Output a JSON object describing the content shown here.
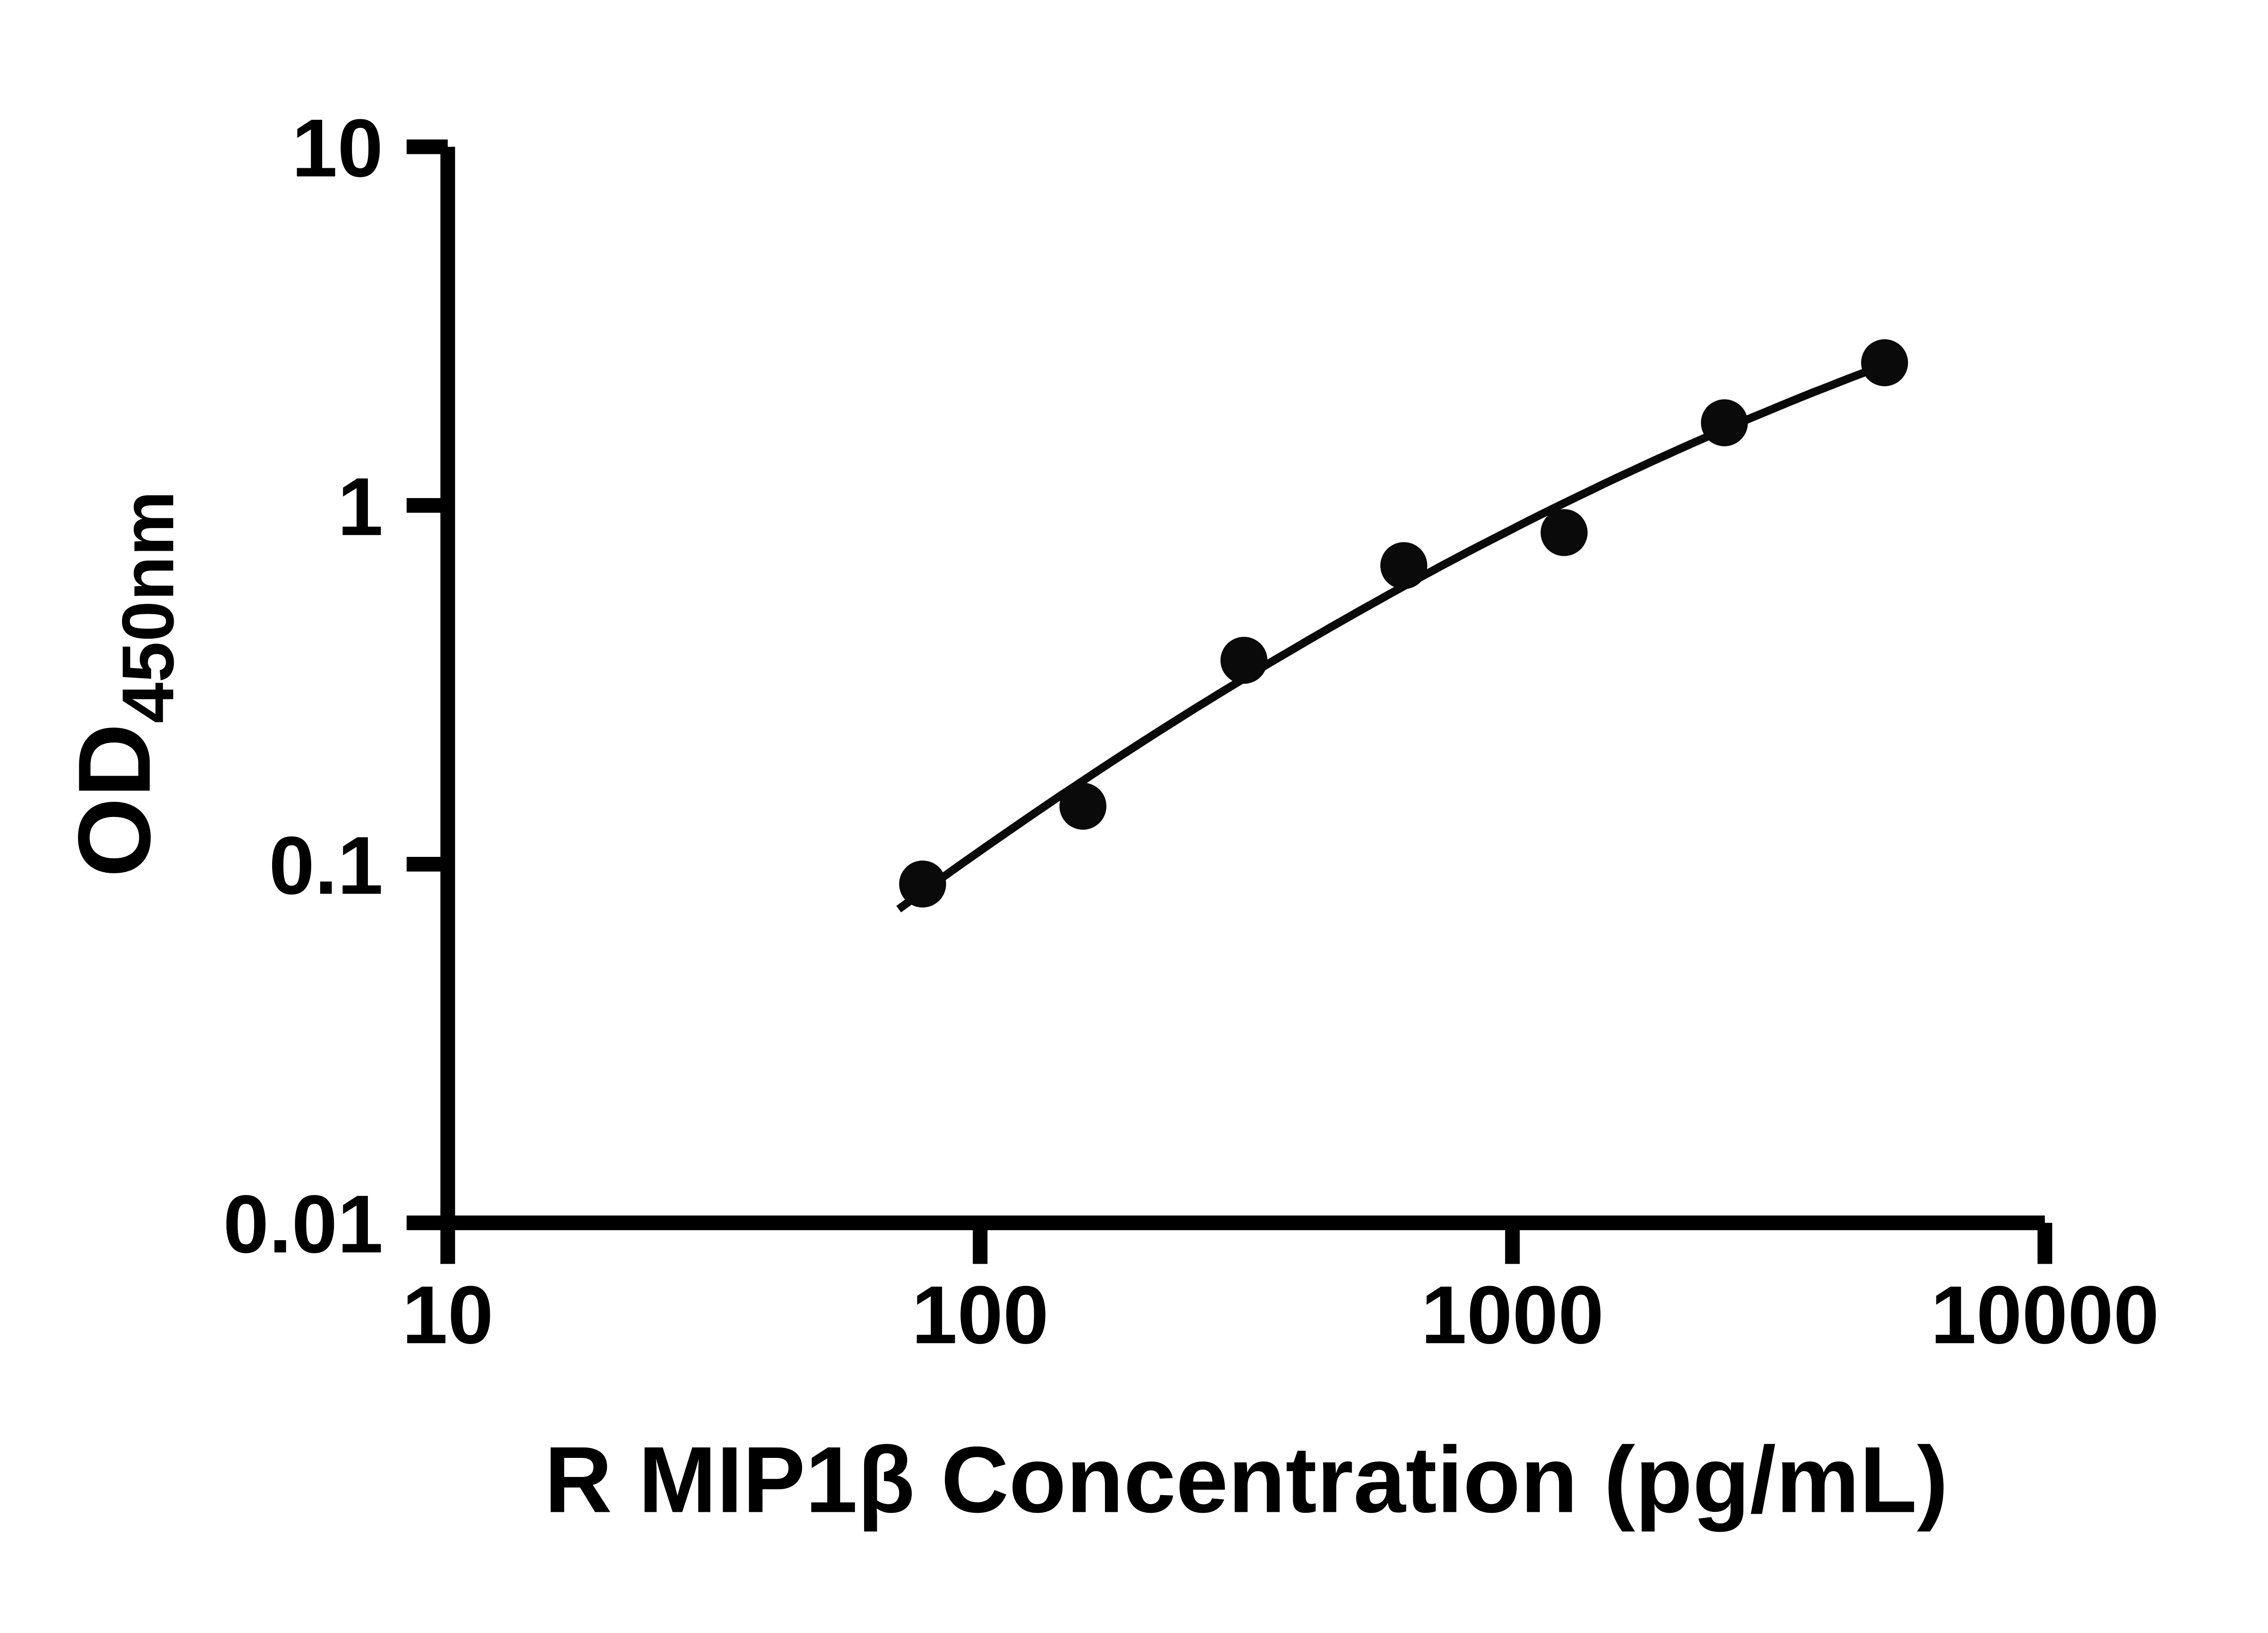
{
  "chart_data": {
    "type": "scatter",
    "title": "",
    "xlabel": "R MIP1β Concentration (pg/mL)",
    "ylabel": "OD450nm",
    "ylabel_main": "OD",
    "ylabel_sub": "450nm",
    "x_scale": "log",
    "y_scale": "log",
    "xlim": [
      10,
      10000
    ],
    "ylim": [
      0.01,
      10
    ],
    "x_ticks": [
      10,
      100,
      1000,
      10000
    ],
    "x_tick_labels": [
      "10",
      "100",
      "1000",
      "10000"
    ],
    "y_ticks": [
      0.01,
      0.1,
      1,
      10
    ],
    "y_tick_labels": [
      "0.01",
      "0.1",
      "1",
      "10"
    ],
    "x": [
      78,
      156,
      313,
      625,
      1250,
      2500,
      5000
    ],
    "y": [
      0.088,
      0.145,
      0.37,
      0.68,
      0.84,
      1.7,
      2.5
    ],
    "fit_type": "smooth log-log quadratic fit through points",
    "grid": false,
    "legend": null,
    "marker_shape": "circle",
    "marker_color": "#0a0a0a",
    "line_color": "#0a0a0a",
    "axis_color": "#000000",
    "background_color": "#ffffff"
  }
}
